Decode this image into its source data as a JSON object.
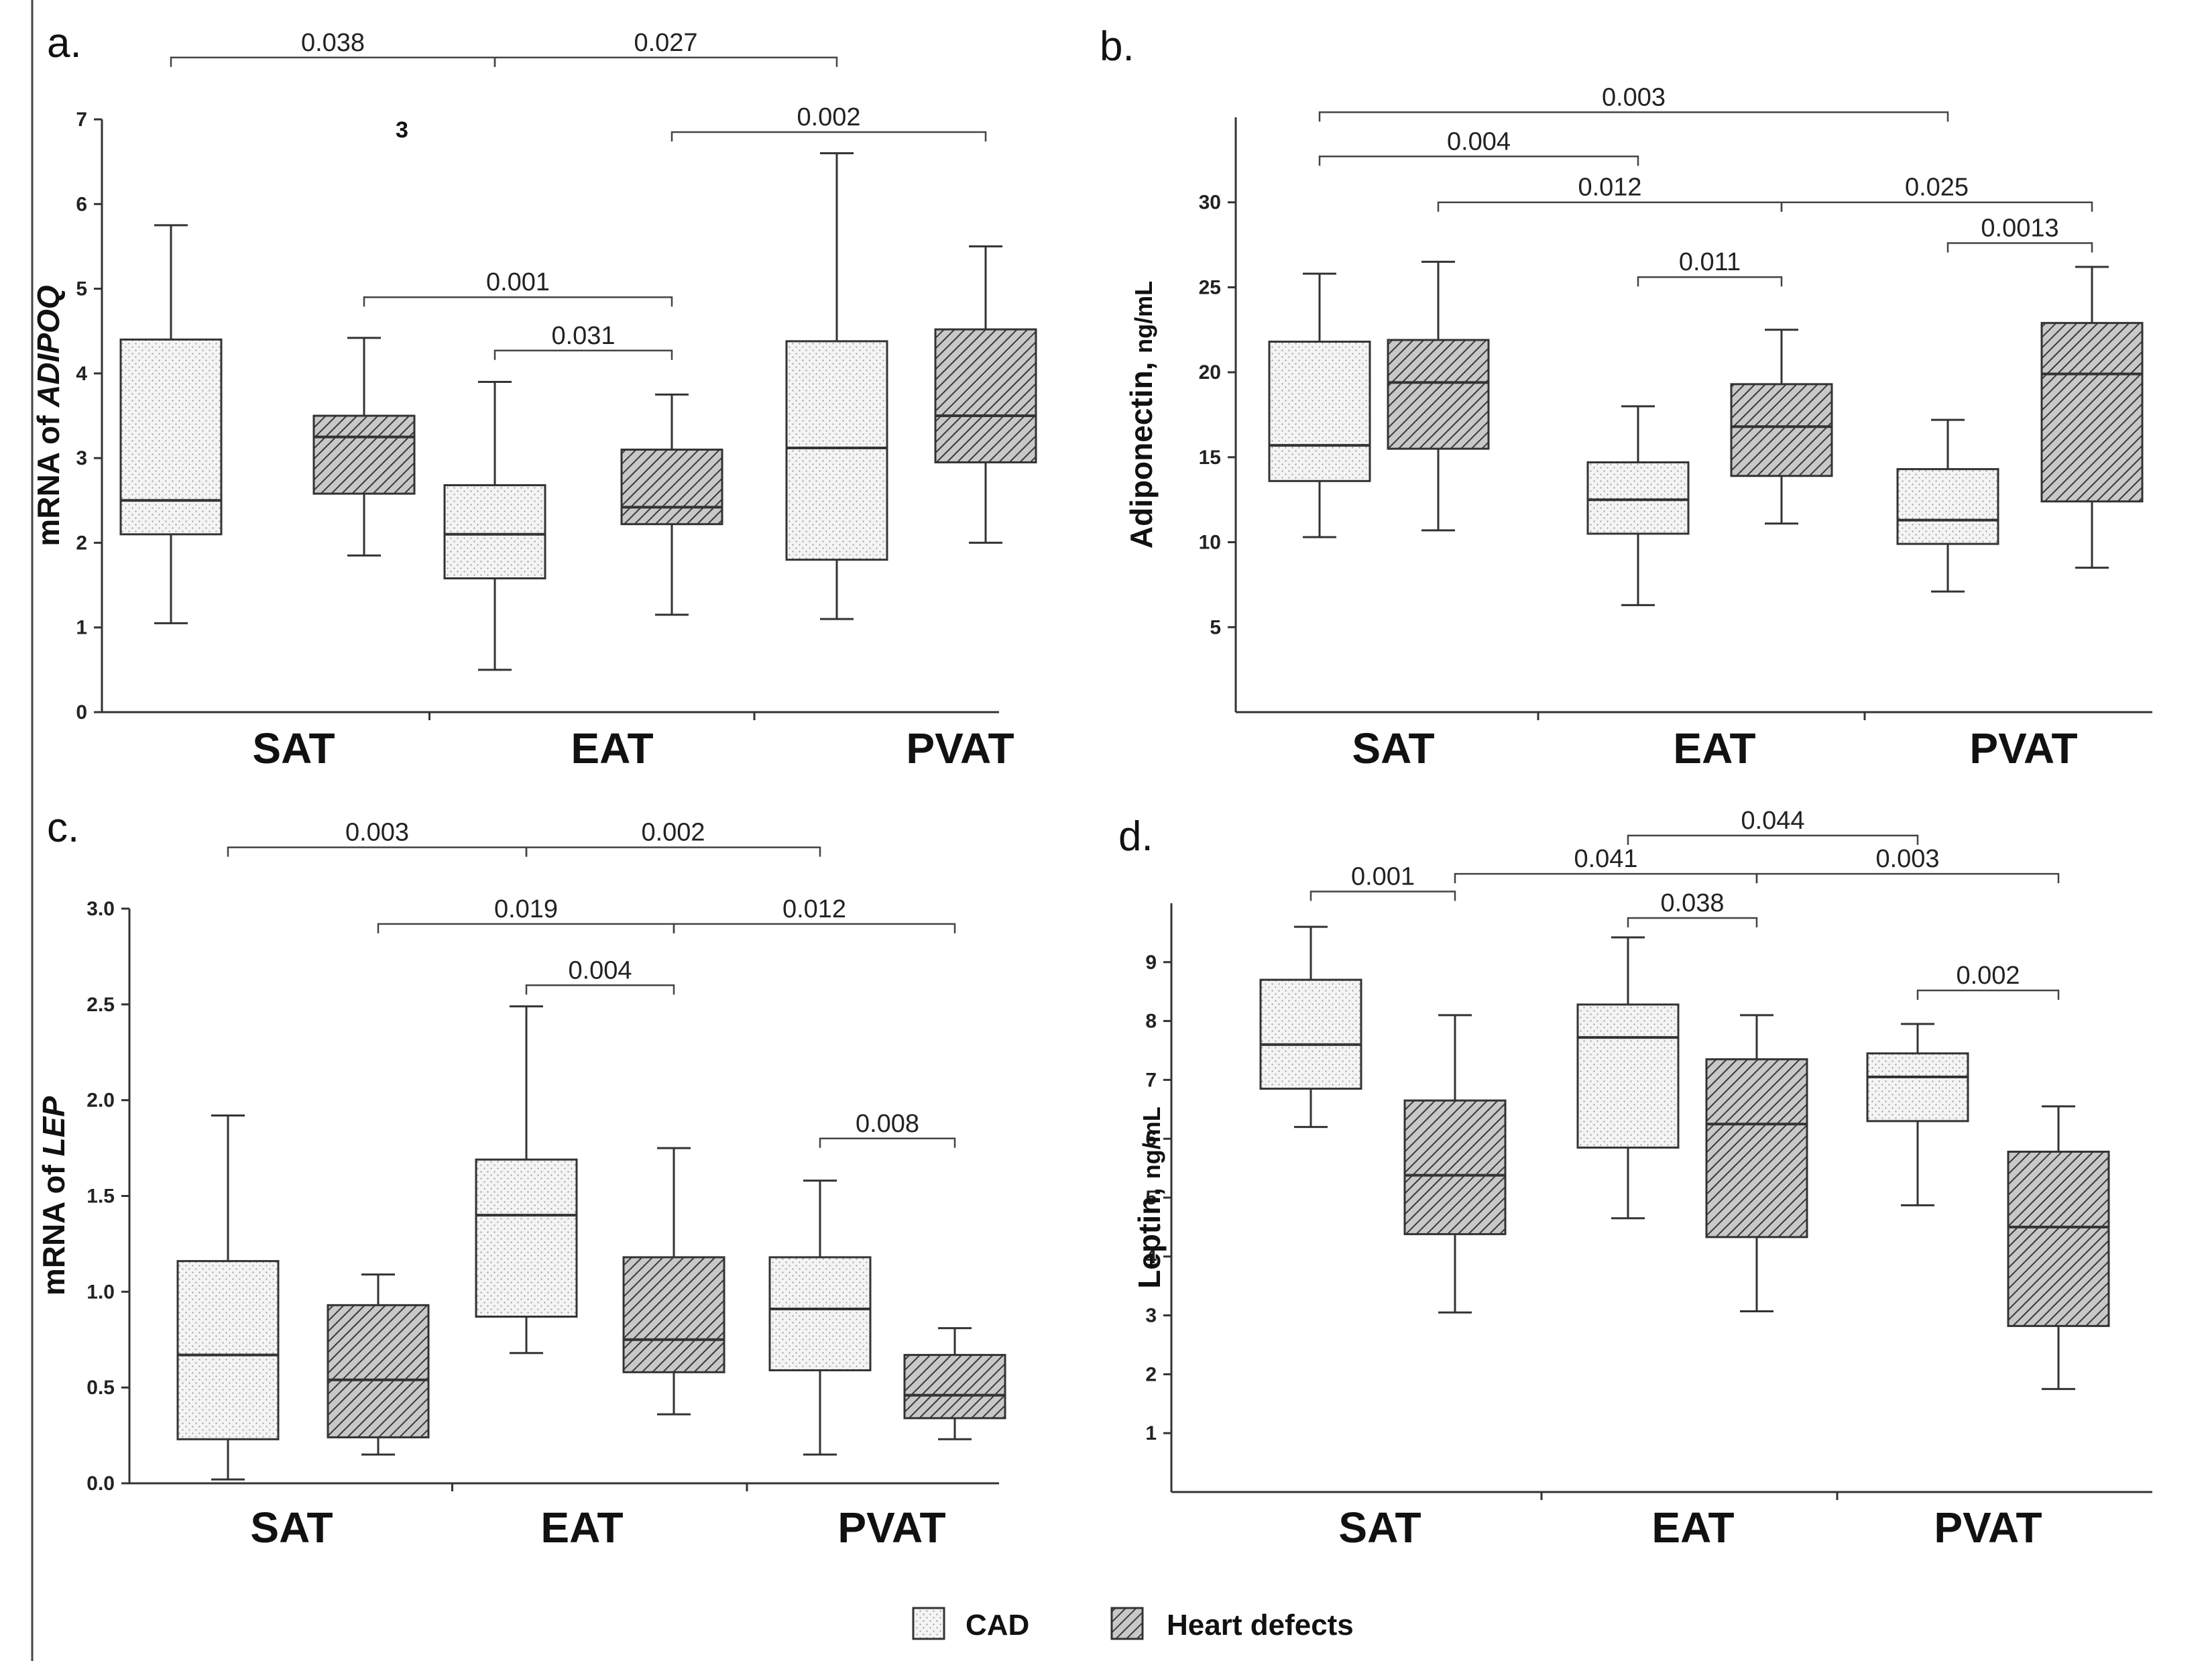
{
  "legend": [
    {
      "name": "CAD",
      "pattern": "dots"
    },
    {
      "name": "Heart defects",
      "pattern": "hatch"
    }
  ],
  "colors": {
    "ink": "#222222",
    "box_fill": "#f2f2f2",
    "hatch_fill": "#bdbdbd"
  },
  "chart_data": [
    {
      "panel_label": "a.",
      "type": "box",
      "ylabel_prefix": "mRNA of ",
      "ylabel_italic": "ADIPOQ",
      "ylim": [
        0,
        7
      ],
      "yticks": [
        "0",
        "1",
        "2",
        "3",
        "4",
        "5",
        "6",
        "7"
      ],
      "categories": [
        "SAT",
        "EAT",
        "PVAT"
      ],
      "extra_text": "3",
      "boxes": [
        {
          "group": "SAT",
          "series": "CAD",
          "min": 1.05,
          "q1": 2.1,
          "median": 2.5,
          "q3": 4.4,
          "max": 5.75
        },
        {
          "group": "SAT",
          "series": "Heart defects",
          "min": 1.85,
          "q1": 2.58,
          "median": 3.25,
          "q3": 3.5,
          "max": 4.42
        },
        {
          "group": "EAT",
          "series": "CAD",
          "min": 0.5,
          "q1": 1.58,
          "median": 2.1,
          "q3": 2.68,
          "max": 3.9
        },
        {
          "group": "EAT",
          "series": "Heart defects",
          "min": 1.15,
          "q1": 2.22,
          "median": 2.42,
          "q3": 3.1,
          "max": 3.75
        },
        {
          "group": "PVAT",
          "series": "CAD",
          "min": 1.1,
          "q1": 1.8,
          "median": 3.12,
          "q3": 4.38,
          "max": 6.6
        },
        {
          "group": "PVAT",
          "series": "Heart defects",
          "min": 2.0,
          "q1": 2.95,
          "median": 3.5,
          "q3": 4.52,
          "max": 5.5
        }
      ],
      "brackets": [
        {
          "from": 0,
          "to": 2,
          "level": 7.73,
          "label": "0.038"
        },
        {
          "from": 2,
          "to": 4,
          "level": 7.73,
          "label": "0.027"
        },
        {
          "from": 3,
          "to": 5,
          "level": 6.85,
          "label": "0.002"
        },
        {
          "from": 1,
          "to": 3,
          "level": 4.9,
          "label": "0.001"
        },
        {
          "from": 2,
          "to": 3,
          "level": 4.27,
          "label": "0.031"
        }
      ]
    },
    {
      "panel_label": "b.",
      "type": "box",
      "ylabel_prefix": "Adiponectin, ",
      "ylabel_italic": "",
      "ylabel_suffix": "ng/mL",
      "ylim": [
        0,
        35
      ],
      "yticks": [
        "5",
        "10",
        "15",
        "20",
        "25",
        "30"
      ],
      "ytick_values": [
        5,
        10,
        15,
        20,
        25,
        30
      ],
      "categories": [
        "SAT",
        "EAT",
        "PVAT"
      ],
      "boxes": [
        {
          "group": "SAT",
          "series": "CAD",
          "min": 10.3,
          "q1": 13.6,
          "median": 15.7,
          "q3": 21.8,
          "max": 25.8
        },
        {
          "group": "SAT",
          "series": "Heart defects",
          "min": 10.7,
          "q1": 15.5,
          "median": 19.4,
          "q3": 21.9,
          "max": 26.5
        },
        {
          "group": "EAT",
          "series": "CAD",
          "min": 6.3,
          "q1": 10.5,
          "median": 12.5,
          "q3": 14.7,
          "max": 18.0
        },
        {
          "group": "EAT",
          "series": "Heart defects",
          "min": 11.1,
          "q1": 13.9,
          "median": 16.8,
          "q3": 19.3,
          "max": 22.5
        },
        {
          "group": "PVAT",
          "series": "CAD",
          "min": 7.1,
          "q1": 9.9,
          "median": 11.3,
          "q3": 14.3,
          "max": 17.2
        },
        {
          "group": "PVAT",
          "series": "Heart defects",
          "min": 8.5,
          "q1": 12.4,
          "median": 19.9,
          "q3": 22.9,
          "max": 26.2
        }
      ],
      "brackets": [
        {
          "from": 0,
          "to": 4,
          "level": 35.3,
          "label": "0.003"
        },
        {
          "from": 0,
          "to": 2,
          "level": 32.7,
          "label": "0.004"
        },
        {
          "from": 1,
          "to": 3,
          "level": 30.0,
          "label": "0.012"
        },
        {
          "from": 3,
          "to": 5,
          "level": 30.0,
          "label": "0.025"
        },
        {
          "from": 4,
          "to": 5,
          "level": 27.6,
          "label": "0.0013"
        },
        {
          "from": 2,
          "to": 3,
          "level": 25.6,
          "label": "0.011"
        }
      ]
    },
    {
      "panel_label": "c.",
      "type": "box",
      "ylabel_prefix": "mRNA of ",
      "ylabel_italic": "LEP",
      "ylim": [
        0,
        3
      ],
      "yticks": [
        "0.0",
        "0.5",
        "1.0",
        "1.5",
        "2.0",
        "2.5",
        "3.0"
      ],
      "categories": [
        "SAT",
        "EAT",
        "PVAT"
      ],
      "boxes": [
        {
          "group": "SAT",
          "series": "CAD",
          "min": 0.02,
          "q1": 0.23,
          "median": 0.67,
          "q3": 1.16,
          "max": 1.92
        },
        {
          "group": "SAT",
          "series": "Heart defects",
          "min": 0.15,
          "q1": 0.24,
          "median": 0.54,
          "q3": 0.93,
          "max": 1.09
        },
        {
          "group": "EAT",
          "series": "CAD",
          "min": 0.68,
          "q1": 0.87,
          "median": 1.4,
          "q3": 1.69,
          "max": 2.49
        },
        {
          "group": "EAT",
          "series": "Heart defects",
          "min": 0.36,
          "q1": 0.58,
          "median": 0.75,
          "q3": 1.18,
          "max": 1.75
        },
        {
          "group": "PVAT",
          "series": "CAD",
          "min": 0.15,
          "q1": 0.59,
          "median": 0.91,
          "q3": 1.18,
          "max": 1.58
        },
        {
          "group": "PVAT",
          "series": "Heart defects",
          "min": 0.23,
          "q1": 0.34,
          "median": 0.46,
          "q3": 0.67,
          "max": 0.81
        }
      ],
      "brackets": [
        {
          "from": 0,
          "to": 2,
          "level": 3.32,
          "label": "0.003"
        },
        {
          "from": 2,
          "to": 4,
          "level": 3.32,
          "label": "0.002"
        },
        {
          "from": 1,
          "to": 3,
          "level": 2.92,
          "label": "0.019"
        },
        {
          "from": 3,
          "to": 5,
          "level": 2.92,
          "label": "0.012"
        },
        {
          "from": 2,
          "to": 3,
          "level": 2.6,
          "label": "0.004"
        },
        {
          "from": 4,
          "to": 5,
          "level": 1.8,
          "label": "0.008"
        }
      ]
    },
    {
      "panel_label": "d.",
      "type": "box",
      "ylabel_prefix": "Leptin, ",
      "ylabel_italic": "",
      "ylabel_suffix": "ng/mL",
      "ylim": [
        0,
        10
      ],
      "yticks": [
        "1",
        "2",
        "3",
        "4",
        "5",
        "6",
        "7",
        "8",
        "9"
      ],
      "ytick_values": [
        1,
        2,
        3,
        4,
        5,
        6,
        7,
        8,
        9
      ],
      "categories": [
        "SAT",
        "EAT",
        "PVAT"
      ],
      "boxes": [
        {
          "group": "SAT",
          "series": "CAD",
          "min": 6.2,
          "q1": 6.85,
          "median": 7.6,
          "q3": 8.7,
          "max": 9.6
        },
        {
          "group": "SAT",
          "series": "Heart defects",
          "min": 3.05,
          "q1": 4.38,
          "median": 5.38,
          "q3": 6.65,
          "max": 8.1
        },
        {
          "group": "EAT",
          "series": "CAD",
          "min": 4.65,
          "q1": 5.85,
          "median": 7.72,
          "q3": 8.28,
          "max": 9.42
        },
        {
          "group": "EAT",
          "series": "Heart defects",
          "min": 3.07,
          "q1": 4.33,
          "median": 6.25,
          "q3": 7.35,
          "max": 8.1
        },
        {
          "group": "PVAT",
          "series": "CAD",
          "min": 4.87,
          "q1": 6.3,
          "median": 7.05,
          "q3": 7.45,
          "max": 7.95
        },
        {
          "group": "PVAT",
          "series": "Heart defects",
          "min": 1.75,
          "q1": 2.82,
          "median": 4.5,
          "q3": 5.78,
          "max": 6.55
        }
      ],
      "brackets": [
        {
          "from": 2,
          "to": 4,
          "level": 11.15,
          "label": "0.044"
        },
        {
          "from": 1,
          "to": 3,
          "level": 10.5,
          "label": "0.041"
        },
        {
          "from": 3,
          "to": 5,
          "level": 10.5,
          "label": "0.003"
        },
        {
          "from": 0,
          "to": 1,
          "level": 10.2,
          "label": "0.001"
        },
        {
          "from": 2,
          "to": 3,
          "level": 9.75,
          "label": "0.038"
        },
        {
          "from": 4,
          "to": 5,
          "level": 8.52,
          "label": "0.002"
        }
      ]
    }
  ]
}
